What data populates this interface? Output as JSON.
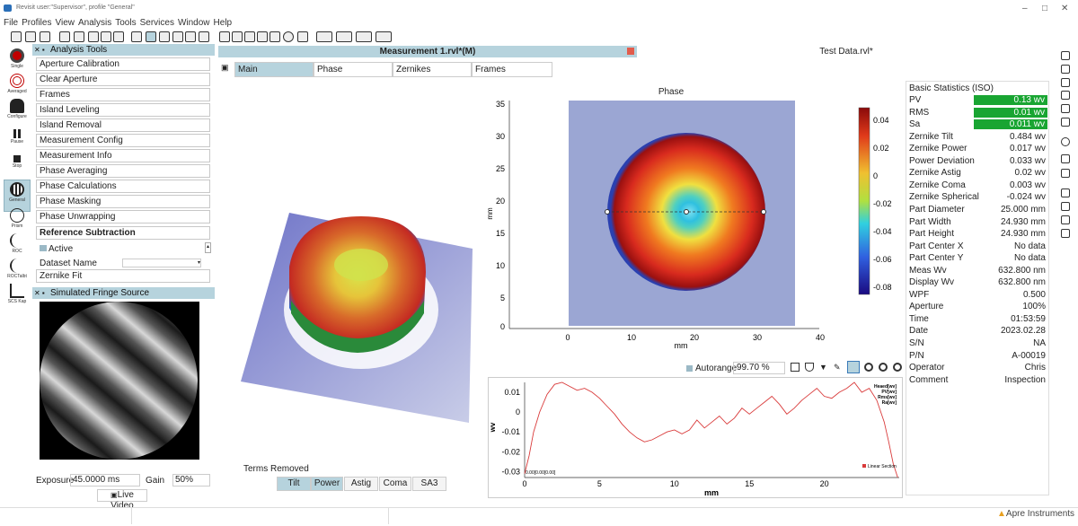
{
  "window": {
    "title": "Revisit user:\"Supervisor\", profile \"General\"",
    "controls": [
      "–",
      "□",
      "✕"
    ]
  },
  "menu": [
    "File",
    "Profiles",
    "View",
    "Analysis",
    "Tools",
    "Services",
    "Window",
    "Help"
  ],
  "left_toolbar": [
    {
      "label": "Single",
      "icon": "record-icon",
      "color": "#c00000"
    },
    {
      "label": "Averaged",
      "icon": "target-icon",
      "color": "#c00000"
    },
    {
      "label": "Configure",
      "icon": "person-config-icon",
      "color": "#222222"
    },
    {
      "label": "Pause",
      "icon": "pause-icon",
      "color": "#222222"
    },
    {
      "label": "Stop",
      "icon": "stop-icon",
      "color": "#222222"
    },
    {
      "label": "General",
      "icon": "fringe-general-icon",
      "color": "#222222"
    },
    {
      "label": "Prism",
      "icon": "prism-icon",
      "color": "#222222"
    },
    {
      "label": "ROC",
      "icon": "roc-icon",
      "color": "#222222"
    },
    {
      "label": "ROCTalbt",
      "icon": "roc-talbot-icon",
      "color": "#222222"
    },
    {
      "label": "SCS Kap",
      "icon": "scs-kap-icon",
      "color": "#222222"
    }
  ],
  "analysis_tools": {
    "header": "Analysis Tools",
    "items": [
      "Aperture Calibration",
      "Clear Aperture",
      "Frames",
      "Island Leveling",
      "Island Removal",
      "Measurement Config",
      "Measurement Info",
      "Phase Averaging",
      "Phase Calculations",
      "Phase Masking",
      "Phase Unwrapping"
    ],
    "section": "Reference Subtraction",
    "active_label": "Active",
    "dataset_label": "Dataset Name",
    "last_item": "Zernike Fit"
  },
  "fringe": {
    "header": "Simulated Fringe Source",
    "exposure_label": "Exposure",
    "exposure_value": "45.0000 ms",
    "gain_label": "Gain",
    "gain_value": "50%",
    "live_video": "Live Video"
  },
  "doc_tabs": {
    "measurement": "Measurement 1.rvl*(M)",
    "test_data": "Test Data.rvl*"
  },
  "sub_tabs": [
    "Main",
    "Phase",
    "Zernikes",
    "Frames"
  ],
  "terms": {
    "title": "Terms Removed",
    "buttons": [
      "Tilt",
      "Power",
      "Astig",
      "Coma",
      "SA3"
    ],
    "active": [
      "Tilt",
      "Power"
    ]
  },
  "phase_map": {
    "title": "Phase",
    "xlabel": "mm",
    "ylabel": "mm",
    "xticks": [
      "0",
      "10",
      "20",
      "30",
      "40"
    ],
    "yticks": [
      "35",
      "30",
      "25",
      "20",
      "15",
      "10",
      "5",
      "0"
    ],
    "colorbar": [
      "0.04",
      "0.02",
      "0",
      "-0.02",
      "-0.04",
      "-0.06",
      "-0.08"
    ]
  },
  "profile_toolbar": {
    "autorange_label": "Autorange",
    "autorange_value": "99.70 %"
  },
  "chart_data": {
    "type": "line",
    "title": "",
    "xlabel": "mm",
    "ylabel": "wv",
    "xlim": [
      0,
      25
    ],
    "ylim": [
      -0.033,
      0.015
    ],
    "xticks": [
      "0",
      "5",
      "10",
      "15",
      "20"
    ],
    "yticks": [
      "0.01",
      "0",
      "-0.01",
      "-0.02",
      "-0.03"
    ],
    "legend_lines": [
      "Heaed[wv]",
      "PV[wv]",
      "Rms[wv]",
      "Ra[wv]"
    ],
    "annotation_left": "0.00[0.00[0.00]",
    "series": [
      {
        "name": "Linear Section",
        "color": "#d93a3a",
        "x": [
          0.0,
          0.3,
          0.6,
          1.0,
          1.5,
          2.0,
          2.5,
          3.0,
          3.5,
          4.0,
          4.5,
          5.0,
          5.5,
          6.0,
          6.5,
          7.0,
          7.5,
          8.0,
          8.5,
          9.0,
          9.5,
          10.0,
          10.5,
          11.0,
          11.5,
          12.0,
          12.5,
          13.0,
          13.5,
          14.0,
          14.5,
          15.0,
          15.5,
          16.0,
          16.5,
          17.0,
          17.5,
          18.0,
          18.5,
          19.0,
          19.5,
          20.0,
          20.5,
          21.0,
          21.5,
          22.0,
          22.5,
          23.0,
          23.5,
          24.0,
          24.3,
          24.6,
          24.9
        ],
        "y": [
          -0.031,
          -0.022,
          -0.01,
          0.0,
          0.009,
          0.014,
          0.015,
          0.013,
          0.011,
          0.012,
          0.01,
          0.007,
          0.003,
          -0.001,
          -0.006,
          -0.01,
          -0.013,
          -0.015,
          -0.014,
          -0.012,
          -0.01,
          -0.009,
          -0.011,
          -0.009,
          -0.004,
          -0.008,
          -0.005,
          -0.002,
          -0.006,
          -0.003,
          0.002,
          -0.001,
          0.002,
          0.005,
          0.008,
          0.004,
          -0.001,
          0.002,
          0.006,
          0.009,
          0.012,
          0.008,
          0.007,
          0.01,
          0.012,
          0.015,
          0.01,
          0.012,
          0.006,
          -0.005,
          -0.015,
          -0.026,
          -0.033
        ]
      }
    ]
  },
  "statistics": {
    "header": "Basic Statistics (ISO)",
    "rows": [
      {
        "k": "PV",
        "v": "0.13 wv",
        "green": true
      },
      {
        "k": "RMS",
        "v": "0.01 wv",
        "green": true
      },
      {
        "k": "Sa",
        "v": "0.011 wv",
        "green": true
      },
      {
        "k": "Zernike Tilt",
        "v": "0.484 wv",
        "green": false
      },
      {
        "k": "Zernike Power",
        "v": "0.017 wv",
        "green": false
      },
      {
        "k": "Power Deviation",
        "v": "0.033 wv",
        "green": false
      },
      {
        "k": "Zernike Astig",
        "v": "0.02 wv",
        "green": false
      },
      {
        "k": "Zernike Coma",
        "v": "0.003 wv",
        "green": false
      },
      {
        "k": "Zernike Spherical",
        "v": "-0.024 wv",
        "green": false
      },
      {
        "k": "Part Diameter",
        "v": "25.000 mm",
        "green": false
      },
      {
        "k": "Part Width",
        "v": "24.930 mm",
        "green": false
      },
      {
        "k": "Part Height",
        "v": "24.930 mm",
        "green": false
      },
      {
        "k": "Part Center X",
        "v": "No data",
        "green": false
      },
      {
        "k": "Part Center Y",
        "v": "No data",
        "green": false
      },
      {
        "k": "Meas Wv",
        "v": "632.800 nm",
        "green": false
      },
      {
        "k": "Display Wv",
        "v": "632.800 nm",
        "green": false
      },
      {
        "k": "WPF",
        "v": "0.500",
        "green": false
      },
      {
        "k": "Aperture",
        "v": "100%",
        "green": false
      },
      {
        "k": "Time",
        "v": "01:53:59",
        "green": false
      },
      {
        "k": "Date",
        "v": "2023.02.28",
        "green": false
      },
      {
        "k": "S/N",
        "v": "NA",
        "green": false
      },
      {
        "k": "P/N",
        "v": "A-00019",
        "green": false
      },
      {
        "k": "Operator",
        "v": "Chris",
        "green": false
      },
      {
        "k": "Comment",
        "v": "Inspection",
        "green": false
      }
    ]
  },
  "brand": "Apre Instruments"
}
